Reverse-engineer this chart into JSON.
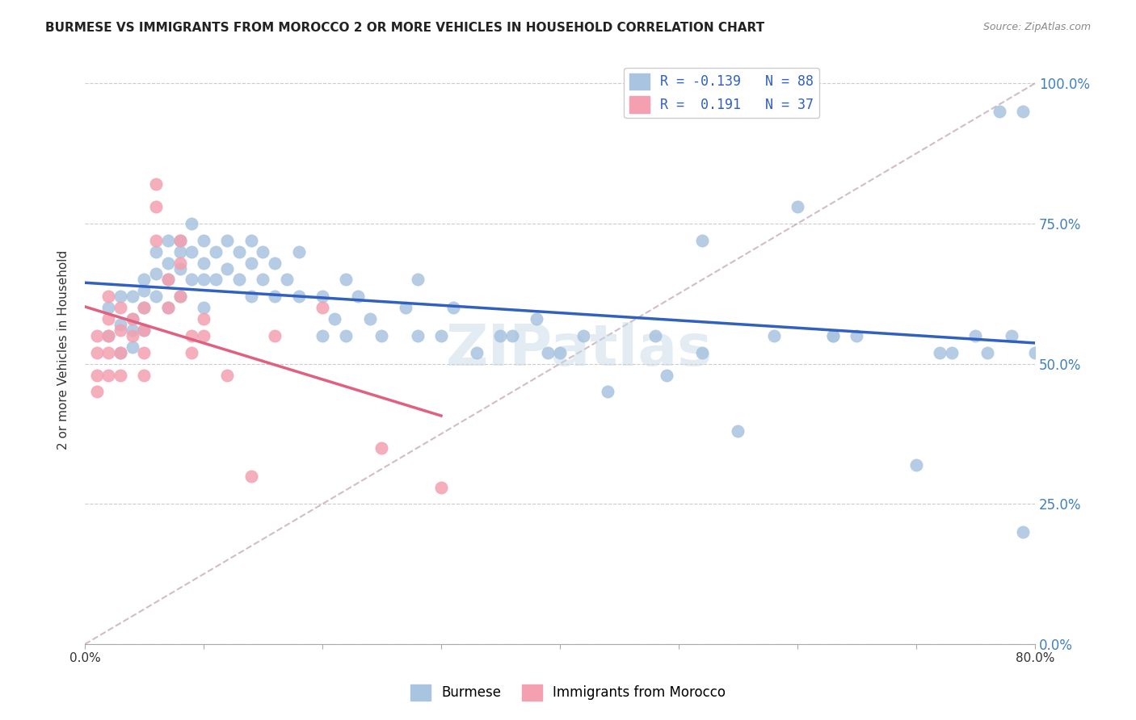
{
  "title": "BURMESE VS IMMIGRANTS FROM MOROCCO 2 OR MORE VEHICLES IN HOUSEHOLD CORRELATION CHART",
  "source": "Source: ZipAtlas.com",
  "xlabel_bottom": "",
  "ylabel": "2 or more Vehicles in Household",
  "xmin": 0.0,
  "xmax": 0.8,
  "ymin": 0.0,
  "ymax": 1.05,
  "yticks": [
    0.0,
    0.25,
    0.5,
    0.75,
    1.0
  ],
  "ytick_labels": [
    "0.0%",
    "25.0%",
    "50.0%",
    "75.0%",
    "100.0%"
  ],
  "xticks": [
    0.0,
    0.1,
    0.2,
    0.3,
    0.4,
    0.5,
    0.6,
    0.7,
    0.8
  ],
  "xtick_labels": [
    "0.0%",
    "",
    "",
    "",
    "",
    "",
    "",
    "",
    "80.0%"
  ],
  "legend_R_blue": "-0.139",
  "legend_N_blue": "88",
  "legend_R_pink": "0.191",
  "legend_N_pink": "37",
  "blue_color": "#a8c4e0",
  "pink_color": "#f4a0b0",
  "blue_line_color": "#3060c0",
  "pink_line_color": "#e06080",
  "dash_line_color": "#c0a0b0",
  "watermark": "ZIPatlas",
  "blue_scatter_x": [
    0.02,
    0.02,
    0.03,
    0.03,
    0.03,
    0.04,
    0.04,
    0.04,
    0.04,
    0.05,
    0.05,
    0.05,
    0.05,
    0.06,
    0.06,
    0.06,
    0.07,
    0.07,
    0.07,
    0.07,
    0.08,
    0.08,
    0.08,
    0.08,
    0.09,
    0.09,
    0.09,
    0.1,
    0.1,
    0.1,
    0.1,
    0.11,
    0.11,
    0.12,
    0.12,
    0.13,
    0.13,
    0.14,
    0.14,
    0.14,
    0.15,
    0.15,
    0.16,
    0.16,
    0.17,
    0.18,
    0.18,
    0.2,
    0.2,
    0.21,
    0.22,
    0.22,
    0.23,
    0.24,
    0.25,
    0.27,
    0.28,
    0.28,
    0.3,
    0.31,
    0.33,
    0.35,
    0.36,
    0.38,
    0.39,
    0.4,
    0.42,
    0.44,
    0.48,
    0.49,
    0.52,
    0.52,
    0.55,
    0.58,
    0.6,
    0.63,
    0.63,
    0.65,
    0.7,
    0.72,
    0.73,
    0.75,
    0.76,
    0.77,
    0.78,
    0.79,
    0.79,
    0.8
  ],
  "blue_scatter_y": [
    0.55,
    0.6,
    0.62,
    0.57,
    0.52,
    0.62,
    0.58,
    0.56,
    0.53,
    0.65,
    0.63,
    0.6,
    0.56,
    0.7,
    0.66,
    0.62,
    0.72,
    0.68,
    0.65,
    0.6,
    0.72,
    0.7,
    0.67,
    0.62,
    0.75,
    0.7,
    0.65,
    0.72,
    0.68,
    0.65,
    0.6,
    0.7,
    0.65,
    0.72,
    0.67,
    0.7,
    0.65,
    0.72,
    0.68,
    0.62,
    0.7,
    0.65,
    0.68,
    0.62,
    0.65,
    0.7,
    0.62,
    0.62,
    0.55,
    0.58,
    0.65,
    0.55,
    0.62,
    0.58,
    0.55,
    0.6,
    0.65,
    0.55,
    0.55,
    0.6,
    0.52,
    0.55,
    0.55,
    0.58,
    0.52,
    0.52,
    0.55,
    0.45,
    0.55,
    0.48,
    0.52,
    0.72,
    0.38,
    0.55,
    0.78,
    0.55,
    0.55,
    0.55,
    0.32,
    0.52,
    0.52,
    0.55,
    0.52,
    0.95,
    0.55,
    0.95,
    0.2,
    0.52
  ],
  "pink_scatter_x": [
    0.01,
    0.01,
    0.01,
    0.01,
    0.02,
    0.02,
    0.02,
    0.02,
    0.02,
    0.03,
    0.03,
    0.03,
    0.03,
    0.04,
    0.04,
    0.05,
    0.05,
    0.05,
    0.05,
    0.06,
    0.06,
    0.06,
    0.07,
    0.07,
    0.08,
    0.08,
    0.08,
    0.09,
    0.09,
    0.1,
    0.1,
    0.12,
    0.14,
    0.16,
    0.2,
    0.25,
    0.3
  ],
  "pink_scatter_y": [
    0.55,
    0.52,
    0.48,
    0.45,
    0.62,
    0.58,
    0.55,
    0.52,
    0.48,
    0.6,
    0.56,
    0.52,
    0.48,
    0.58,
    0.55,
    0.6,
    0.56,
    0.52,
    0.48,
    0.82,
    0.78,
    0.72,
    0.65,
    0.6,
    0.68,
    0.62,
    0.72,
    0.55,
    0.52,
    0.58,
    0.55,
    0.48,
    0.3,
    0.55,
    0.6,
    0.35,
    0.28
  ]
}
